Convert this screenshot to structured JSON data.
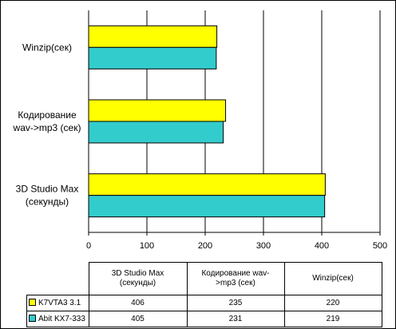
{
  "chart_data": {
    "type": "bar",
    "orientation": "horizontal",
    "categories": [
      "3D Studio Max (секунды)",
      "Кодирование wav->mp3 (сек)",
      "Winzip(сек)"
    ],
    "category_labels": [
      [
        "3D Studio Max",
        "(секунды)"
      ],
      [
        "Кодирование",
        "wav->mp3 (сек)"
      ],
      [
        "Winzip(сек)"
      ]
    ],
    "table_headers": [
      [
        "3D Studio Max",
        "(секунды)"
      ],
      [
        "Кодирование wav-",
        ">mp3 (сек)"
      ],
      [
        "Winzip(сек)"
      ]
    ],
    "series": [
      {
        "name": "K7VTA3 3.1",
        "values": [
          406,
          235,
          220
        ],
        "color": "#ffff00"
      },
      {
        "name": "Abit KX7-333",
        "values": [
          405,
          231,
          219
        ],
        "color": "#33cccc"
      }
    ],
    "xlim": [
      0,
      500
    ],
    "xticks": [
      "0",
      "100",
      "200",
      "300",
      "400",
      "500"
    ],
    "grid": true,
    "legend": "data-table",
    "title": "",
    "xlabel": "",
    "ylabel": ""
  }
}
